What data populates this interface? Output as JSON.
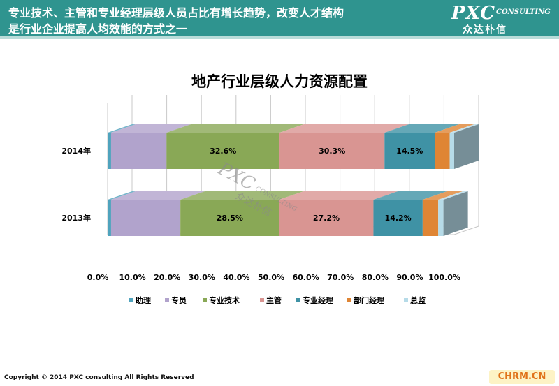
{
  "header": {
    "line1": "专业技术、主管和专业经理层级人员占比有增长趋势，改变人才结构",
    "line2": "是行业企业提高人均效能的方式之一",
    "logo_main": "PXC",
    "logo_sub": "CONSULTING",
    "logo_cn": "众达朴信"
  },
  "watermark": {
    "main": "PXC",
    "sub": "CONSULTING",
    "cn": "众达朴信"
  },
  "footer": {
    "copyright": "Copyright © 2014 PXC consulting All Rights Reserved",
    "site": "CHRM.CN"
  },
  "chart_data": {
    "type": "bar",
    "orientation": "horizontal",
    "stacked": "percent",
    "style": "3d",
    "title": "地产行业层级人力资源配置",
    "categories": [
      "2014年",
      "2013年"
    ],
    "xlim": [
      0,
      100
    ],
    "x_ticks": [
      "0.0%",
      "10.0%",
      "20.0%",
      "30.0%",
      "40.0%",
      "50.0%",
      "60.0%",
      "70.0%",
      "80.0%",
      "90.0%",
      "100.0%"
    ],
    "gridlines": true,
    "legend_position": "bottom",
    "series": [
      {
        "name": "助理",
        "color": "#4fa3bd",
        "values": [
          1.0,
          1.0
        ],
        "labels": [
          "",
          ""
        ]
      },
      {
        "name": "专员",
        "color": "#b1a3cc",
        "values": [
          16.0,
          20.0
        ],
        "labels": [
          "",
          ""
        ]
      },
      {
        "name": "专业技术",
        "color": "#89a856",
        "values": [
          32.6,
          28.5
        ],
        "labels": [
          "32.6%",
          "28.5%"
        ]
      },
      {
        "name": "主管",
        "color": "#d99592",
        "values": [
          30.3,
          27.2
        ],
        "labels": [
          "30.3%",
          "27.2%"
        ]
      },
      {
        "name": "专业经理",
        "color": "#3f92a5",
        "values": [
          14.5,
          14.2
        ],
        "labels": [
          "14.5%",
          "14.2%"
        ]
      },
      {
        "name": "部门经理",
        "color": "#df8534",
        "values": [
          4.3,
          4.5
        ],
        "labels": [
          "",
          ""
        ]
      },
      {
        "name": "总监",
        "color": "#b6dbe8",
        "values": [
          1.3,
          1.5
        ],
        "labels": [
          "",
          ""
        ]
      }
    ]
  }
}
